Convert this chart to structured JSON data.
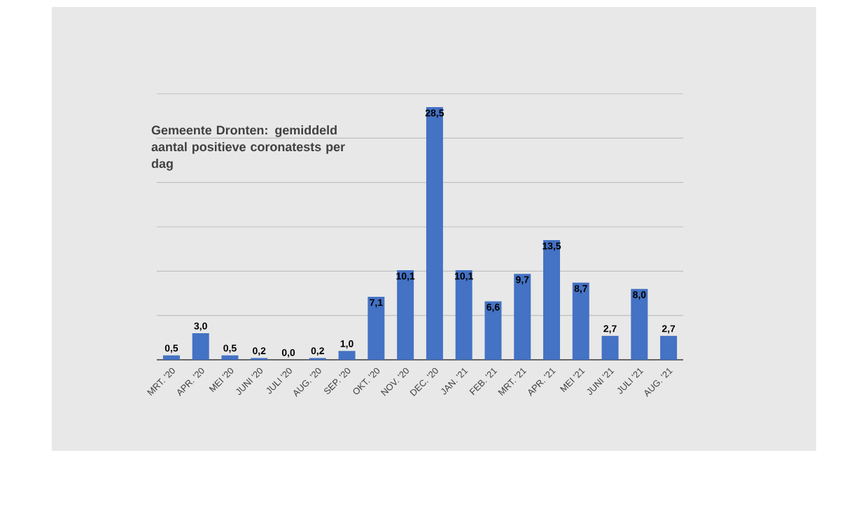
{
  "chart_data": {
    "type": "bar",
    "title": "Gemeente Dronten: gemiddeld aantal positieve coronatests per dag",
    "categories": [
      "MRT. '20",
      "APR. '20",
      "MEI '20",
      "JUNI '20",
      "JULI '20",
      "AUG. '20",
      "SEP. '20",
      "OKT. '20",
      "NOV. '20",
      "DEC. '20",
      "JAN. '21",
      "FEB. '21",
      "MRT. '21",
      "APR. '21",
      "MEI '21",
      "JUNI '21",
      "JULI '21",
      "AUG. '21"
    ],
    "values": [
      0.5,
      3.0,
      0.5,
      0.2,
      0.0,
      0.2,
      1.0,
      7.1,
      10.1,
      28.5,
      10.1,
      6.6,
      9.7,
      13.5,
      8.7,
      2.7,
      8.0,
      2.7
    ],
    "value_labels": [
      "0,5",
      "3,0",
      "0,5",
      "0,2",
      "0,0",
      "0,2",
      "1,0",
      "7,1",
      "10,1",
      "28,5",
      "10,1",
      "6,6",
      "9,7",
      "13,5",
      "8,7",
      "2,7",
      "8,0",
      "2,7"
    ],
    "color": "#4472c4",
    "ylim": [
      0,
      30
    ],
    "yticks": [
      {
        "value": 5,
        "label": null
      },
      {
        "value": 10,
        "label": null
      },
      {
        "value": 15,
        "label": null
      },
      {
        "value": 20,
        "label": null
      },
      {
        "value": 25,
        "label": null
      },
      {
        "value": 30,
        "label": null
      }
    ],
    "grid": "y",
    "tick_labels": "x"
  }
}
